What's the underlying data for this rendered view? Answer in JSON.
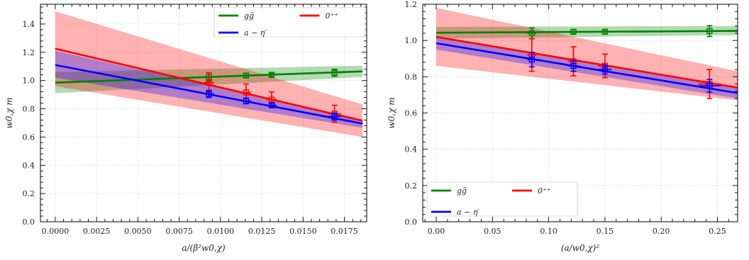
{
  "chart_data": [
    {
      "type": "line",
      "xlabel": "a/(β²w0,χ)",
      "ylabel": "w0,χ m",
      "xlim": [
        -0.0009,
        0.01885
      ],
      "ylim": [
        0.0,
        1.54
      ],
      "xticks": [
        0.0,
        0.0025,
        0.005,
        0.0075,
        0.01,
        0.0125,
        0.015,
        0.0175
      ],
      "xtick_labels": [
        "0.0000",
        "0.0025",
        "0.0050",
        "0.0075",
        "0.0100",
        "0.0125",
        "0.0150",
        "0.0175"
      ],
      "yticks": [
        0.0,
        0.2,
        0.4,
        0.6,
        0.8,
        1.0,
        1.2,
        1.4
      ],
      "ytick_labels": [
        "0.0",
        "0.2",
        "0.4",
        "0.6",
        "0.8",
        "1.0",
        "1.2",
        "1.4"
      ],
      "grid": true,
      "legend_position": "top-right",
      "series": [
        {
          "name": "gg̃",
          "color": "#008000",
          "fit_x": [
            0.0,
            0.0186
          ],
          "fit_y": [
            0.985,
            1.065
          ],
          "band_lo": [
            0.91,
            1.025
          ],
          "band_hi": [
            1.06,
            1.105
          ],
          "points": [
            {
              "x": 0.0093,
              "y": 1.025,
              "yerr": 0.03,
              "xerr": 0.0003
            },
            {
              "x": 0.01155,
              "y": 1.035,
              "yerr": 0.015,
              "xerr": 0.0003
            },
            {
              "x": 0.0131,
              "y": 1.04,
              "yerr": 0.012,
              "xerr": 0.0003
            },
            {
              "x": 0.0169,
              "y": 1.055,
              "yerr": 0.025,
              "xerr": 0.0004
            }
          ]
        },
        {
          "name": "0⁺⁺",
          "color": "#ff0000",
          "fit_x": [
            0.0,
            0.0186
          ],
          "fit_y": [
            1.225,
            0.715
          ],
          "band_lo": [
            0.96,
            0.6
          ],
          "band_hi": [
            1.49,
            0.83
          ],
          "points": [
            {
              "x": 0.0093,
              "y": 0.985,
              "yerr": 0.07,
              "xerr": 0.0003
            },
            {
              "x": 0.01155,
              "y": 0.915,
              "yerr": 0.06,
              "xerr": 0.0003
            },
            {
              "x": 0.0131,
              "y": 0.865,
              "yerr": 0.055,
              "xerr": 0.0003
            },
            {
              "x": 0.0169,
              "y": 0.765,
              "yerr": 0.06,
              "xerr": 0.0004
            }
          ]
        },
        {
          "name": "a − η′",
          "color": "#0000ff",
          "fit_x": [
            0.0,
            0.0186
          ],
          "fit_y": [
            1.11,
            0.695
          ],
          "band_lo": [
            1.02,
            0.665
          ],
          "band_hi": [
            1.21,
            0.725
          ],
          "points": [
            {
              "x": 0.0093,
              "y": 0.905,
              "yerr": 0.025,
              "xerr": 0.0003
            },
            {
              "x": 0.01155,
              "y": 0.855,
              "yerr": 0.02,
              "xerr": 0.0003
            },
            {
              "x": 0.0131,
              "y": 0.825,
              "yerr": 0.015,
              "xerr": 0.0003
            },
            {
              "x": 0.0169,
              "y": 0.745,
              "yerr": 0.025,
              "xerr": 0.0004
            }
          ]
        }
      ]
    },
    {
      "type": "line",
      "xlabel": "(a/w0,χ)²",
      "ylabel": "w0,χ m",
      "xlim": [
        -0.012,
        0.268
      ],
      "ylim": [
        0.0,
        1.2
      ],
      "xticks": [
        0.0,
        0.05,
        0.1,
        0.15,
        0.2,
        0.25
      ],
      "xtick_labels": [
        "0.00",
        "0.05",
        "0.10",
        "0.15",
        "0.20",
        "0.25"
      ],
      "yticks": [
        0.0,
        0.2,
        0.4,
        0.6,
        0.8,
        1.0,
        1.2
      ],
      "ytick_labels": [
        "0.0",
        "0.2",
        "0.4",
        "0.6",
        "0.8",
        "1.0",
        "1.2"
      ],
      "grid": true,
      "legend_position": "bottom-left",
      "series": [
        {
          "name": "gg̃",
          "color": "#008000",
          "fit_x": [
            0.0,
            0.268
          ],
          "fit_y": [
            1.043,
            1.053
          ],
          "band_lo": [
            1.01,
            1.03
          ],
          "band_hi": [
            1.075,
            1.08
          ],
          "points": [
            {
              "x": 0.085,
              "y": 1.04,
              "yerr": 0.03,
              "xerr": 0.004
            },
            {
              "x": 0.122,
              "y": 1.048,
              "yerr": 0.012,
              "xerr": 0.005
            },
            {
              "x": 0.15,
              "y": 1.048,
              "yerr": 0.012,
              "xerr": 0.006
            },
            {
              "x": 0.243,
              "y": 1.052,
              "yerr": 0.03,
              "xerr": 0.01
            }
          ]
        },
        {
          "name": "0⁺⁺",
          "color": "#ff0000",
          "fit_x": [
            0.0,
            0.268
          ],
          "fit_y": [
            1.02,
            0.74
          ],
          "band_lo": [
            0.86,
            0.67
          ],
          "band_hi": [
            1.18,
            0.83
          ],
          "points": [
            {
              "x": 0.085,
              "y": 0.92,
              "yerr": 0.09,
              "xerr": 0.004
            },
            {
              "x": 0.122,
              "y": 0.885,
              "yerr": 0.08,
              "xerr": 0.005
            },
            {
              "x": 0.15,
              "y": 0.86,
              "yerr": 0.065,
              "xerr": 0.006
            },
            {
              "x": 0.243,
              "y": 0.76,
              "yerr": 0.08,
              "xerr": 0.01
            }
          ]
        },
        {
          "name": "a − η′",
          "color": "#0000ff",
          "fit_x": [
            0.0,
            0.268
          ],
          "fit_y": [
            0.985,
            0.71
          ],
          "band_lo": [
            0.95,
            0.68
          ],
          "band_hi": [
            1.02,
            0.74
          ],
          "points": [
            {
              "x": 0.085,
              "y": 0.895,
              "yerr": 0.04,
              "xerr": 0.004
            },
            {
              "x": 0.122,
              "y": 0.86,
              "yerr": 0.03,
              "xerr": 0.005
            },
            {
              "x": 0.15,
              "y": 0.84,
              "yerr": 0.025,
              "xerr": 0.006
            },
            {
              "x": 0.243,
              "y": 0.75,
              "yerr": 0.035,
              "xerr": 0.01
            }
          ]
        }
      ]
    }
  ]
}
